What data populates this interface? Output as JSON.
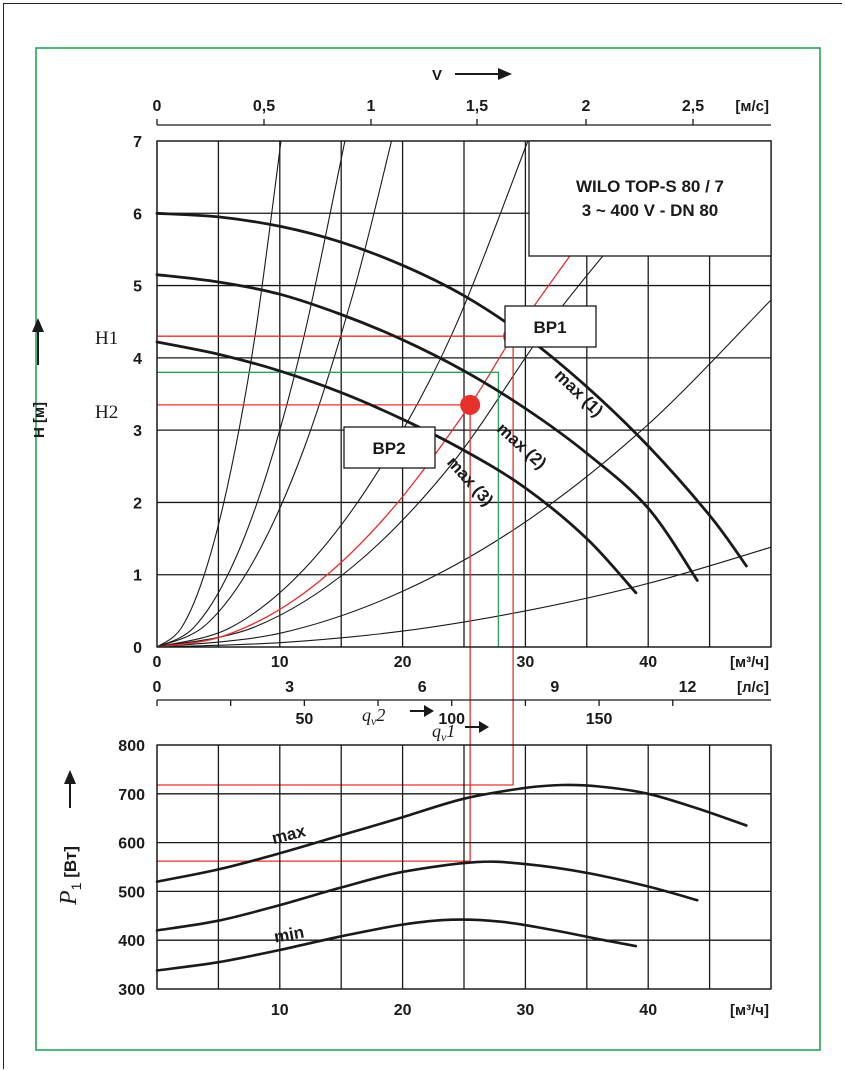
{
  "colors": {
    "frame": "#27a35a",
    "accent": "#e8302c",
    "ink": "#1a1a1a"
  },
  "chart_data": [
    {
      "type": "line",
      "name": "head",
      "title": [
        "WILO TOP-S 80 / 7",
        "3 ~ 400 V - DN 80"
      ],
      "xlabel": "[м³/ч]",
      "xlabel_alt": "[л/с]",
      "ylabel": "H [м]",
      "xlim": [
        0,
        50
      ],
      "ylim": [
        0,
        7
      ],
      "xticks": [
        "0",
        "10",
        "20",
        "30",
        "40"
      ],
      "yticks": [
        "0",
        "1",
        "2",
        "3",
        "4",
        "5",
        "6",
        "7"
      ],
      "ls_ticks": [
        "0",
        "3",
        "6",
        "9",
        "12"
      ],
      "velocity_axis": {
        "label": "V",
        "ticks": [
          "0",
          "0,5",
          "1",
          "1,5",
          "2",
          "2,5"
        ],
        "unit": "[м/с]"
      },
      "series": [
        {
          "name": "max (1)",
          "x": [
            0,
            5,
            10,
            15,
            20,
            25,
            30,
            35,
            40,
            45,
            48
          ],
          "y": [
            6.0,
            5.95,
            5.82,
            5.6,
            5.28,
            4.86,
            4.3,
            3.6,
            2.78,
            1.82,
            1.12
          ]
        },
        {
          "name": "max (2)",
          "x": [
            0,
            5,
            10,
            15,
            20,
            25,
            30,
            35,
            40,
            44
          ],
          "y": [
            5.15,
            5.05,
            4.88,
            4.6,
            4.25,
            3.82,
            3.3,
            2.68,
            1.92,
            0.92
          ]
        },
        {
          "name": "max (3)",
          "x": [
            0,
            5,
            10,
            15,
            20,
            25,
            30,
            35,
            39
          ],
          "y": [
            4.22,
            4.05,
            3.82,
            3.52,
            3.15,
            2.72,
            2.2,
            1.5,
            0.75
          ]
        }
      ],
      "system_curves": [
        {
          "x": [
            0,
            2,
            4,
            6,
            8,
            10.1
          ],
          "y": [
            0,
            0.27,
            1.08,
            2.43,
            4.32,
            7.0
          ]
        },
        {
          "x": [
            0,
            3,
            6,
            9,
            12,
            15.3
          ],
          "y": [
            0,
            0.27,
            1.08,
            2.43,
            4.32,
            7.0
          ]
        },
        {
          "x": [
            0,
            4,
            8,
            12,
            16,
            19.1
          ],
          "y": [
            0,
            0.31,
            1.23,
            2.76,
            4.91,
            7.0
          ]
        },
        {
          "x": [
            0,
            6,
            12,
            18,
            24,
            30.2
          ],
          "y": [
            0,
            0.27,
            1.08,
            2.43,
            4.32,
            7.0
          ]
        },
        {
          "x": [
            0,
            8,
            16,
            24,
            32,
            39.2
          ],
          "y": [
            0,
            0.28,
            1.12,
            2.53,
            4.49,
            6.0
          ]
        },
        {
          "x": [
            0,
            10,
            20,
            30,
            40,
            50
          ],
          "y": [
            0,
            0.19,
            0.77,
            1.73,
            3.08,
            4.8
          ]
        },
        {
          "x": [
            0,
            10,
            20,
            30,
            40,
            50
          ],
          "y": [
            0,
            0.06,
            0.22,
            0.5,
            0.88,
            1.38
          ]
        }
      ],
      "operating_points": [
        {
          "label": "BP1",
          "axis_label": "H1",
          "flow_label": "q",
          "flow_sub": "v",
          "flow_suffix": "1",
          "x": 29,
          "y": 4.3
        },
        {
          "label": "BP2",
          "axis_label": "H2",
          "flow_label": "q",
          "flow_sub": "v",
          "flow_suffix": "2",
          "x": 25.5,
          "y": 3.35
        }
      ],
      "green_reference": {
        "x": 27.8,
        "y": 3.8
      },
      "red_system_curve": {
        "x": [
          0,
          5,
          10,
          15,
          20,
          25.5,
          29,
          34
        ],
        "y": [
          0,
          0.13,
          0.52,
          1.17,
          2.08,
          3.35,
          4.3,
          5.5
        ]
      },
      "flow_axis_secondary": {
        "ticks": [
          "50",
          "100",
          "150"
        ],
        "values": [
          50,
          100,
          150
        ]
      }
    },
    {
      "type": "line",
      "name": "power",
      "xlabel": "[м³/ч]",
      "ylabel": "P₁ [Вт]",
      "ylabel_main": "P",
      "ylabel_sub": "1",
      "ylabel_unit": "[Вт]",
      "xlim": [
        0,
        50
      ],
      "ylim": [
        300,
        800
      ],
      "xticks": [
        "10",
        "20",
        "30",
        "40"
      ],
      "yticks": [
        "300",
        "400",
        "500",
        "600",
        "700",
        "800"
      ],
      "series": [
        {
          "name": "max",
          "x": [
            0,
            5,
            10,
            15,
            20,
            25,
            30,
            33,
            36,
            40,
            44,
            48
          ],
          "y": [
            520,
            545,
            578,
            615,
            652,
            690,
            712,
            718,
            715,
            700,
            670,
            635
          ]
        },
        {
          "name": "",
          "x": [
            0,
            5,
            10,
            15,
            20,
            26,
            30,
            35,
            40,
            44
          ],
          "y": [
            420,
            440,
            472,
            508,
            540,
            560,
            556,
            538,
            510,
            482
          ]
        },
        {
          "name": "min",
          "x": [
            0,
            5,
            10,
            15,
            20,
            24,
            28,
            32,
            36,
            39
          ],
          "y": [
            338,
            355,
            380,
            408,
            432,
            442,
            438,
            422,
            402,
            388
          ]
        }
      ],
      "operating_readouts": [
        {
          "x": 29,
          "power": 718
        },
        {
          "x": 25.5,
          "power": 562
        }
      ]
    }
  ]
}
